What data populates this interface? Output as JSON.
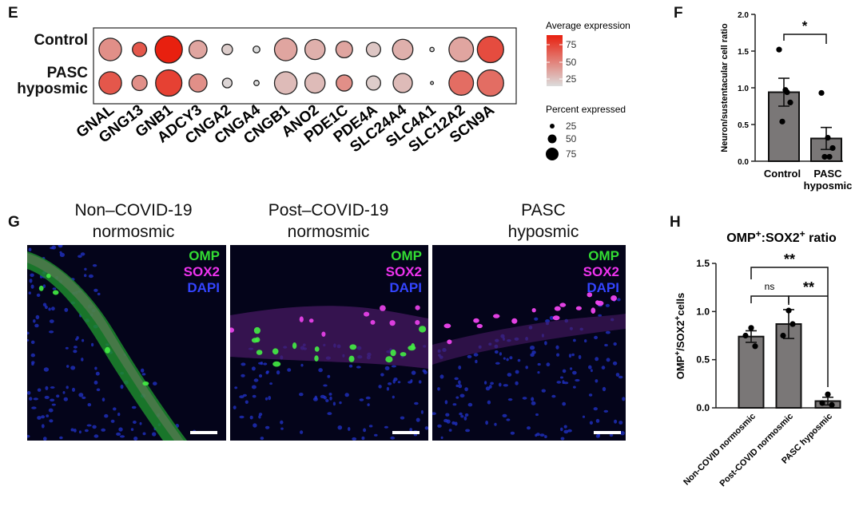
{
  "panels": {
    "E": {
      "letter": "E",
      "rows": [
        "Control",
        "PASC\nhyposmic"
      ],
      "row_labels": {
        "control": "Control",
        "pasc_line1": "PASC",
        "pasc_line2": "hyposmic"
      },
      "genes": [
        "GNAL",
        "GNG13",
        "GNB1",
        "ADCY3",
        "CNGA2",
        "CNGA4",
        "CNGB1",
        "ANO2",
        "PDE1C",
        "PDE4A",
        "SLC24A4",
        "SLC4A1",
        "SLC12A2",
        "SCN9A"
      ],
      "legend_expr_title": "Average expression",
      "legend_expr_ticks": [
        "75",
        "50",
        "25"
      ],
      "legend_pct_title": "Percent expressed",
      "legend_pct_ticks": [
        "25",
        "50",
        "75"
      ],
      "color_low": "#dcdcdc",
      "color_high": "#e8200f"
    },
    "F": {
      "letter": "F",
      "significance": "*"
    },
    "G": {
      "letter": "G",
      "titles": [
        {
          "line1": "Non–COVID-19",
          "line2": "normosmic"
        },
        {
          "line1": "Post–COVID-19",
          "line2": "normosmic"
        },
        {
          "line1": "PASC",
          "line2": "hyposmic"
        }
      ],
      "channels": [
        {
          "name": "OMP",
          "color": "#33dd33"
        },
        {
          "name": "SOX2",
          "color": "#ee33ee"
        },
        {
          "name": "DAPI",
          "color": "#3344ff"
        }
      ]
    },
    "H": {
      "letter": "H",
      "title_parts": {
        "a": "OMP",
        "sup1": "+",
        "b": ":SOX2",
        "sup2": "+",
        "c": " ratio"
      },
      "ylabel_parts": {
        "a": "OMP",
        "sup1": "+",
        "b": "/SOX2",
        "sup2": "+",
        "c": "cells"
      },
      "sig_top": "**",
      "sig_ns": "ns",
      "sig_right": "**"
    }
  },
  "chart_data": [
    {
      "type": "scatter",
      "subtype": "dotplot",
      "categories": [
        "GNAL",
        "GNG13",
        "GNB1",
        "ADCY3",
        "CNGA2",
        "CNGA4",
        "CNGB1",
        "ANO2",
        "PDE1C",
        "PDE4A",
        "SLC24A4",
        "SLC4A1",
        "SLC12A2",
        "SCN9A"
      ],
      "series": [
        {
          "name": "Control",
          "avg_expression": [
            40,
            65,
            92,
            30,
            12,
            5,
            30,
            25,
            30,
            15,
            25,
            5,
            30,
            70
          ],
          "percent_expressed": [
            55,
            22,
            80,
            35,
            12,
            5,
            55,
            44,
            30,
            22,
            45,
            2,
            65,
            75
          ]
        },
        {
          "name": "PASC hyposmic",
          "avg_expression": [
            65,
            40,
            75,
            40,
            8,
            5,
            20,
            20,
            40,
            12,
            20,
            5,
            55,
            55
          ],
          "percent_expressed": [
            55,
            25,
            75,
            35,
            10,
            3,
            55,
            44,
            28,
            22,
            40,
            1,
            65,
            75
          ]
        }
      ],
      "legend": {
        "expression_ticks": [
          25,
          50,
          75
        ],
        "percent_ticks": [
          25,
          50,
          75
        ]
      }
    },
    {
      "type": "bar",
      "categories": [
        "Control",
        "PASC hyposmic"
      ],
      "values": [
        0.94,
        0.31
      ],
      "errors": [
        0.19,
        0.15
      ],
      "points": [
        [
          1.52,
          0.97,
          0.8,
          0.54,
          0.94
        ],
        [
          0.93,
          0.32,
          0.18,
          0.06,
          0.06
        ]
      ],
      "ylabel": "Neuron/sustentacular cell ratio",
      "ylim": [
        0,
        2.0
      ],
      "yticks": [
        "0.0",
        "0.5",
        "1.0",
        "1.5",
        "2.0"
      ]
    },
    {
      "type": "bar",
      "categories": [
        "Non-COVID normosmic",
        "Post-COVID normosmic",
        "PASC hyposmic"
      ],
      "values": [
        0.74,
        0.87,
        0.07
      ],
      "errors": [
        0.06,
        0.15,
        0.04
      ],
      "points": [
        [
          0.83,
          0.75,
          0.64
        ],
        [
          1.01,
          0.75,
          0.87
        ],
        [
          0.14,
          0.05,
          0.03
        ]
      ],
      "title": "OMP+:SOX2+ ratio",
      "ylabel": "OMP+/SOX2+cells",
      "ylim": [
        0,
        1.5
      ],
      "yticks": [
        "0.0",
        "0.5",
        "1.0",
        "1.5"
      ]
    }
  ]
}
